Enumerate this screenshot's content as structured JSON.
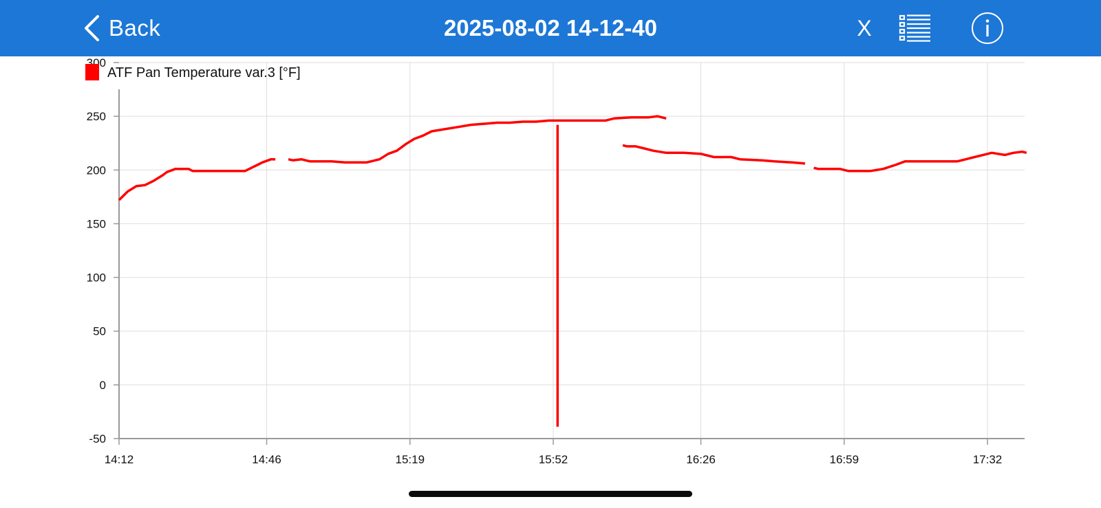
{
  "nav": {
    "back_label": "Back",
    "title": "2025-08-02 14-12-40",
    "close_label": "X",
    "icons": {
      "back": "chevron-left-icon",
      "list": "list-icon",
      "info": "info-icon"
    }
  },
  "colors": {
    "nav_background": "#1d77d6",
    "series": "#ff0000",
    "grid": "#dedede",
    "axis": "#999999"
  },
  "chart_data": {
    "type": "line",
    "title": "",
    "xlabel": "",
    "ylabel": "",
    "ylim": [
      -50,
      300
    ],
    "yticks": [
      "300",
      "250",
      "200",
      "150",
      "100",
      "50",
      "0",
      "-50"
    ],
    "xticks": [
      "14:12",
      "14:46",
      "15:19",
      "15:52",
      "16:26",
      "16:59",
      "17:32"
    ],
    "xlim": [
      "14:12",
      "17:41"
    ],
    "grid": true,
    "legend_position": "top-left",
    "series": [
      {
        "name": "ATF Pan Temperature var.3 [°F]",
        "color": "#ff0000",
        "segments": [
          [
            [
              "14:12",
              172
            ],
            [
              "14:13",
              176
            ],
            [
              "14:14",
              180
            ],
            [
              "14:16",
              185
            ],
            [
              "14:18",
              186
            ],
            [
              "14:20",
              190
            ],
            [
              "14:22",
              195
            ],
            [
              "14:23",
              198
            ],
            [
              "14:25",
              201
            ],
            [
              "14:26",
              201
            ],
            [
              "14:27",
              201
            ],
            [
              "14:28",
              201
            ],
            [
              "14:29",
              199
            ],
            [
              "14:36",
              199
            ],
            [
              "14:41",
              199
            ],
            [
              "14:43",
              203
            ],
            [
              "14:44",
              205
            ],
            [
              "14:45",
              207
            ],
            [
              "14:47",
              210
            ],
            [
              "14:48",
              210
            ]
          ],
          [
            [
              "14:51",
              210
            ],
            [
              "14:52",
              209
            ],
            [
              "14:54",
              210
            ],
            [
              "14:56",
              208
            ],
            [
              "15:01",
              208
            ],
            [
              "15:04",
              207
            ],
            [
              "15:09",
              207
            ],
            [
              "15:12",
              210
            ],
            [
              "15:14",
              215
            ],
            [
              "15:16",
              218
            ],
            [
              "15:18",
              224
            ],
            [
              "15:20",
              229
            ],
            [
              "15:22",
              232
            ],
            [
              "15:24",
              236
            ],
            [
              "15:27",
              238
            ],
            [
              "15:30",
              240
            ],
            [
              "15:33",
              242
            ],
            [
              "15:36",
              243
            ],
            [
              "15:39",
              244
            ],
            [
              "15:42",
              244
            ],
            [
              "15:45",
              245
            ],
            [
              "15:48",
              245
            ],
            [
              "15:51",
              246
            ],
            [
              "15:54",
              246
            ],
            [
              "15:57",
              246
            ],
            [
              "16:00",
              246
            ],
            [
              "16:04",
              246
            ],
            [
              "16:06",
              248
            ],
            [
              "16:10",
              249
            ],
            [
              "16:14",
              249
            ],
            [
              "16:16",
              250
            ],
            [
              "16:17",
              249
            ],
            [
              "16:18",
              248
            ]
          ],
          [
            [
              "15:53",
              242
            ],
            [
              "15:53",
              -39
            ]
          ],
          [
            [
              "16:08",
              223
            ],
            [
              "16:09",
              222
            ],
            [
              "16:11",
              222
            ],
            [
              "16:13",
              220
            ],
            [
              "16:15",
              218
            ],
            [
              "16:18",
              216
            ],
            [
              "16:22",
              216
            ],
            [
              "16:26",
              215
            ],
            [
              "16:29",
              212
            ],
            [
              "16:33",
              212
            ],
            [
              "16:35",
              210
            ],
            [
              "16:40",
              209
            ],
            [
              "16:43",
              208
            ],
            [
              "16:47",
              207
            ],
            [
              "16:50",
              206
            ]
          ],
          [
            [
              "16:52",
              202
            ],
            [
              "16:53",
              201
            ],
            [
              "16:58",
              201
            ],
            [
              "17:00",
              199
            ],
            [
              "17:05",
              199
            ],
            [
              "17:08",
              201
            ],
            [
              "17:11",
              205
            ],
            [
              "17:13",
              208
            ],
            [
              "17:18",
              208
            ],
            [
              "17:23",
              208
            ],
            [
              "17:25",
              208
            ],
            [
              "17:27",
              210
            ],
            [
              "17:29",
              212
            ],
            [
              "17:31",
              214
            ],
            [
              "17:33",
              216
            ],
            [
              "17:36",
              214
            ],
            [
              "17:38",
              216
            ],
            [
              "17:40",
              217
            ],
            [
              "17:41",
              216
            ]
          ]
        ]
      }
    ]
  }
}
